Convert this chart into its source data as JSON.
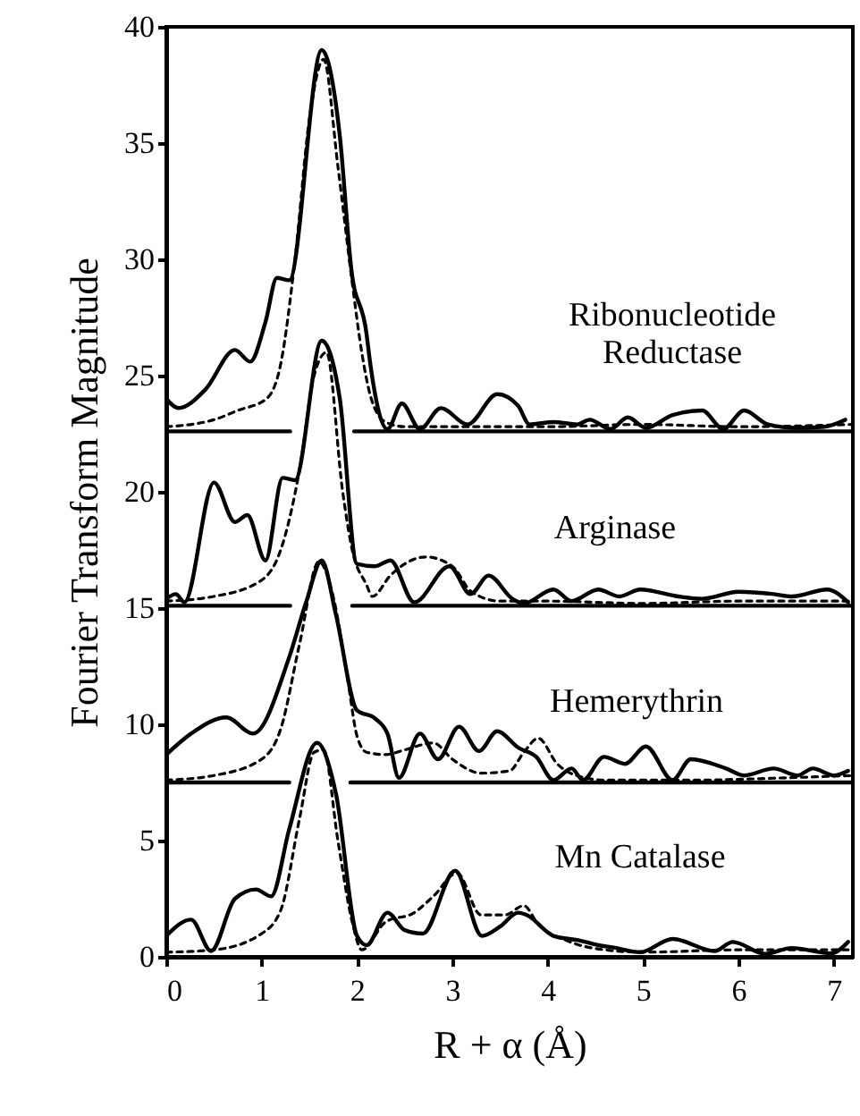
{
  "chart_data": {
    "type": "line",
    "xlabel": "R + α (Å)",
    "ylabel": "Fourier Transform Magnitude",
    "xlim": [
      0,
      7.2
    ],
    "xticks": [
      0,
      1,
      2,
      3,
      4,
      5,
      6,
      7
    ],
    "ylim": [
      0,
      40
    ],
    "yticks": [
      0,
      5,
      10,
      15,
      20,
      25,
      30,
      35,
      40
    ],
    "marker": "none",
    "annotations": [
      "Ribonucleotide\nReductase",
      "Arginase",
      "Hemerythrin",
      "Mn Catalase"
    ],
    "series": [
      {
        "color": "#000000",
        "line_style": "solid",
        "x": [
          0,
          0.13,
          0.41,
          0.72,
          0.88,
          1.04,
          1.16,
          1.29,
          1.63,
          1.82,
          1.94,
          2.1,
          2.13,
          2.32,
          2.47,
          2.66,
          2.88,
          3.16,
          3.47,
          3.69,
          3.81,
          4.06,
          4.31,
          4.44,
          4.66,
          4.84,
          5.03,
          5.31,
          5.62,
          5.84,
          6.06,
          6.31,
          6.62,
          6.9,
          7.12
        ],
        "values": [
          24.0,
          23.6,
          24.4,
          26.1,
          25.6,
          27.3,
          29.2,
          29.1,
          39.0,
          35.3,
          29.6,
          26.8,
          25.8,
          22.7,
          23.8,
          22.7,
          23.6,
          22.9,
          24.2,
          23.7,
          22.9,
          23.0,
          22.9,
          23.1,
          22.7,
          23.2,
          22.75,
          23.3,
          23.5,
          22.7,
          23.5,
          22.9,
          22.75,
          22.8,
          23.1
        ]
      },
      {
        "color": "#000000",
        "line_style": "dashed",
        "x": [
          0,
          0.5,
          0.75,
          1.05,
          1.2,
          1.35,
          1.5,
          1.65,
          1.8,
          1.95,
          2.05,
          2.15,
          2.3,
          2.5,
          3,
          4,
          5,
          6,
          7.2
        ],
        "values": [
          22.8,
          23.1,
          23.5,
          24.0,
          25.5,
          30,
          36,
          38.6,
          34,
          29,
          26,
          24.0,
          23.0,
          22.8,
          22.8,
          22.8,
          22.9,
          22.8,
          22.9
        ]
      },
      {
        "color": "#000000",
        "line_style": "solid",
        "x": [
          0,
          1.3
        ],
        "values": [
          22.6,
          22.6
        ]
      },
      {
        "color": "#000000",
        "line_style": "solid",
        "x": [
          1.97,
          7.2
        ],
        "values": [
          22.6,
          22.6
        ]
      },
      {
        "color": "#000000",
        "line_style": "solid",
        "x": [
          0,
          0.1,
          0.19,
          0.5,
          0.72,
          0.85,
          1.04,
          1.22,
          1.35,
          1.63,
          1.82,
          2.0,
          2.19,
          2.35,
          2.6,
          2.97,
          3.19,
          3.38,
          3.63,
          3.75,
          4.06,
          4.25,
          4.53,
          4.75,
          4.97,
          5.37,
          5.62,
          6.0,
          6.37,
          6.56,
          6.93,
          7.15
        ],
        "values": [
          15.4,
          15.6,
          15.25,
          20.4,
          18.7,
          19.0,
          17.05,
          20.6,
          20.5,
          26.5,
          24.0,
          16.9,
          16.8,
          17.05,
          15.25,
          16.8,
          15.6,
          16.4,
          15.4,
          15.2,
          15.8,
          15.3,
          15.8,
          15.5,
          15.8,
          15.5,
          15.4,
          15.7,
          15.6,
          15.5,
          15.8,
          15.25
        ]
      },
      {
        "color": "#000000",
        "line_style": "dashed",
        "x": [
          0,
          0.5,
          1.0,
          1.2,
          1.4,
          1.55,
          1.68,
          1.85,
          1.95,
          2.1,
          2.16,
          2.35,
          2.5,
          2.72,
          3.0,
          3.2,
          3.5,
          4,
          5,
          6,
          7.2
        ],
        "values": [
          15.3,
          15.5,
          16.2,
          17.5,
          21,
          25,
          26,
          20,
          17.5,
          16.0,
          15.5,
          16.4,
          16.9,
          17.2,
          16.8,
          15.7,
          15.3,
          15.3,
          15.2,
          15.3,
          15.3
        ]
      },
      {
        "color": "#000000",
        "line_style": "solid",
        "x": [
          0,
          1.3
        ],
        "values": [
          15.1,
          15.1
        ]
      },
      {
        "color": "#000000",
        "line_style": "solid",
        "x": [
          1.95,
          7.2
        ],
        "values": [
          15.1,
          15.1
        ]
      },
      {
        "color": "#000000",
        "line_style": "solid",
        "x": [
          0,
          0.26,
          0.63,
          0.91,
          1.29,
          1.47,
          1.63,
          1.78,
          2.0,
          2.19,
          2.32,
          2.44,
          2.66,
          2.85,
          3.07,
          3.28,
          3.47,
          3.69,
          3.88,
          4.06,
          4.25,
          4.37,
          4.59,
          4.81,
          5.03,
          5.31,
          5.5,
          5.87,
          6.06,
          6.37,
          6.62,
          6.78,
          7.0,
          7.15
        ],
        "values": [
          8.7,
          9.6,
          10.3,
          9.6,
          12.9,
          15.3,
          17.05,
          14.7,
          10.6,
          10.25,
          9.6,
          7.7,
          9.6,
          8.5,
          9.9,
          8.85,
          9.7,
          9.0,
          8.6,
          7.6,
          8.1,
          7.6,
          8.6,
          8.3,
          9.05,
          7.6,
          8.5,
          8.1,
          7.8,
          8.1,
          7.8,
          8.1,
          7.8,
          8.0
        ]
      },
      {
        "color": "#000000",
        "line_style": "dashed",
        "x": [
          0,
          0.5,
          1.0,
          1.2,
          1.4,
          1.6,
          1.75,
          1.9,
          2.0,
          2.1,
          2.3,
          2.5,
          2.8,
          3.0,
          3.3,
          3.6,
          3.75,
          3.9,
          4.1,
          4.3,
          4.6,
          5.5,
          6.5,
          7.2
        ],
        "values": [
          7.6,
          7.8,
          8.5,
          9.8,
          13.5,
          17.0,
          15.5,
          12,
          9.5,
          8.8,
          8.7,
          8.9,
          9.2,
          8.5,
          7.9,
          8.0,
          8.8,
          9.4,
          8.3,
          7.8,
          7.6,
          7.6,
          7.7,
          7.8
        ]
      },
      {
        "color": "#000000",
        "line_style": "solid",
        "x": [
          0,
          1.29
        ],
        "values": [
          7.5,
          7.5
        ]
      },
      {
        "color": "#000000",
        "line_style": "solid",
        "x": [
          1.93,
          7.2
        ],
        "values": [
          7.5,
          7.5
        ]
      },
      {
        "color": "#000000",
        "line_style": "solid",
        "x": [
          0,
          0.26,
          0.47,
          0.72,
          0.94,
          1.1,
          1.29,
          1.58,
          1.78,
          2.0,
          2.1,
          2.32,
          2.5,
          2.69,
          3.03,
          3.31,
          3.5,
          3.69,
          3.78,
          4.06,
          4.34,
          4.53,
          4.69,
          4.97,
          5.31,
          5.75,
          5.94,
          6.28,
          6.56,
          6.97,
          7.15
        ],
        "values": [
          0.9,
          1.6,
          0.25,
          2.5,
          2.9,
          2.6,
          5.5,
          9.2,
          7.0,
          0.9,
          0.5,
          1.9,
          1.15,
          1.0,
          3.7,
          0.9,
          1.3,
          1.9,
          1.8,
          0.9,
          0.7,
          0.5,
          0.4,
          0.2,
          0.77,
          0.25,
          0.64,
          0.13,
          0.38,
          0.15,
          0.64
        ]
      },
      {
        "color": "#000000",
        "line_style": "dashed",
        "x": [
          0,
          0.5,
          1.0,
          1.2,
          1.4,
          1.55,
          1.65,
          1.8,
          1.95,
          2.05,
          2.3,
          2.6,
          2.8,
          3.05,
          3.3,
          3.55,
          3.75,
          3.9,
          4.2,
          4.6,
          5,
          6,
          7.2
        ],
        "values": [
          0.2,
          0.3,
          1.0,
          2.0,
          6,
          8.8,
          8.9,
          5,
          1.5,
          0.3,
          1.5,
          1.9,
          2.6,
          3.6,
          1.8,
          1.8,
          2.2,
          1.4,
          0.7,
          0.3,
          0.2,
          0.3,
          0.3
        ]
      }
    ]
  }
}
